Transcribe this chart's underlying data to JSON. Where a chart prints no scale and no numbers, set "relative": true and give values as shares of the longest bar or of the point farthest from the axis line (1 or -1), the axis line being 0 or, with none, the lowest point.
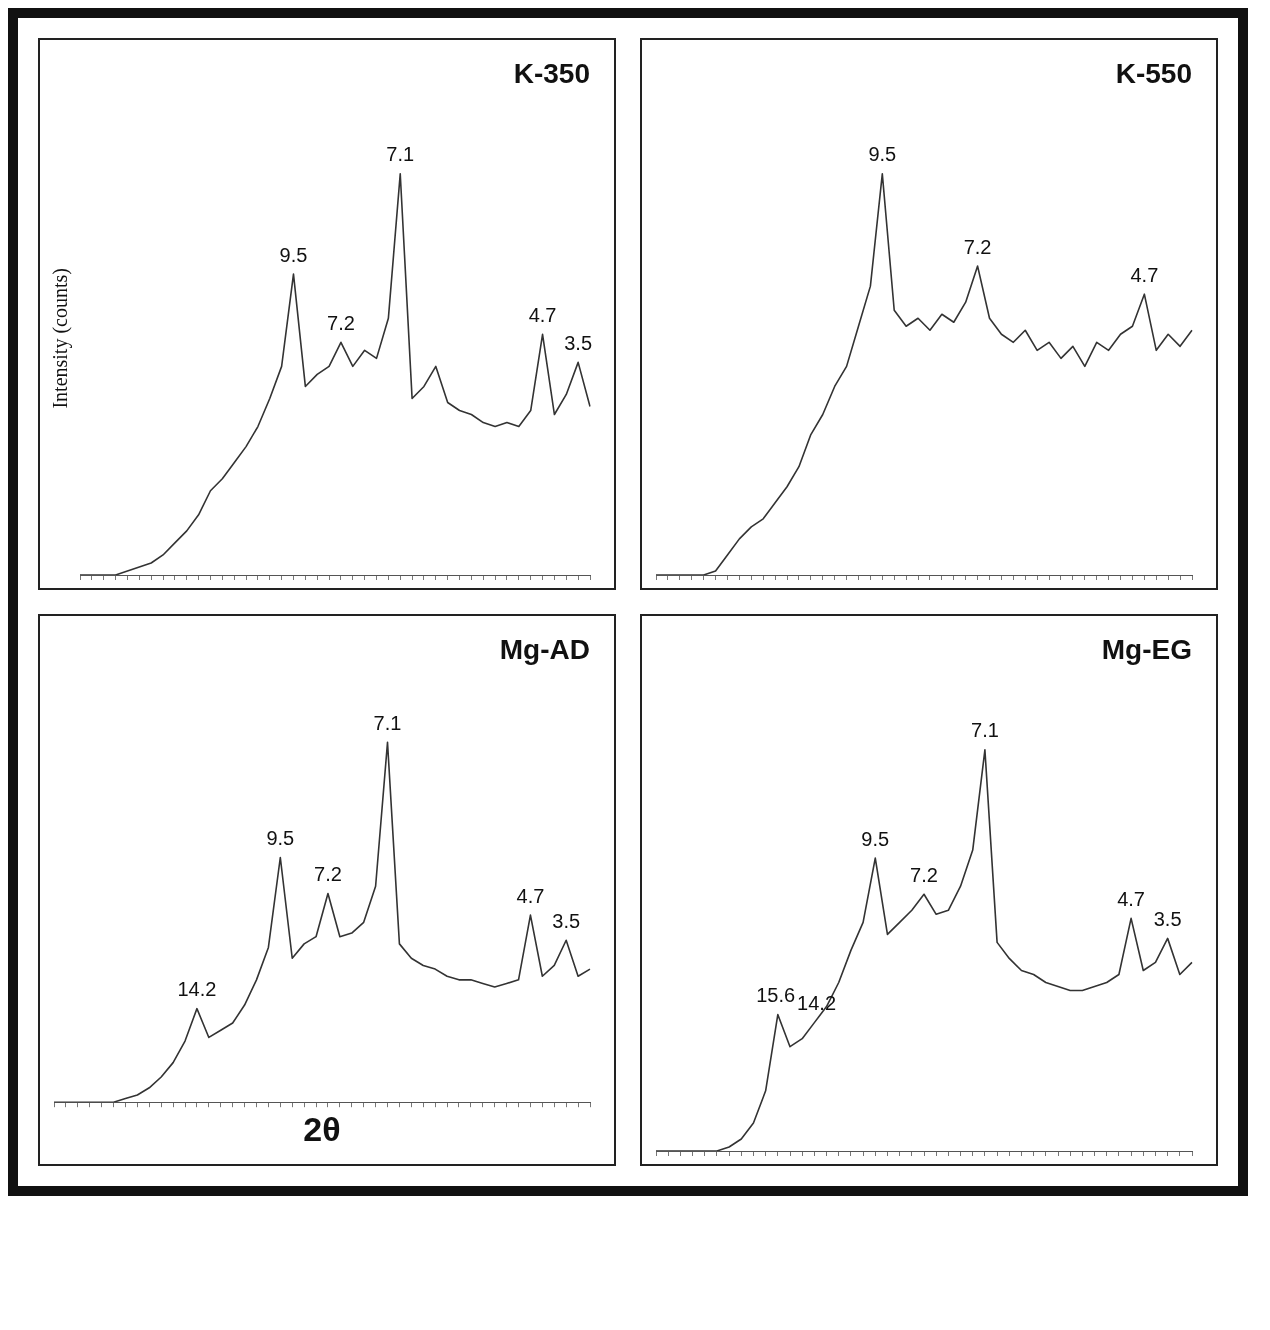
{
  "chart_data": [
    {
      "type": "line",
      "title": "K-350",
      "ylabel": "Intensity (counts)",
      "relative": true,
      "tick_labels": false,
      "grid": false,
      "legend": false,
      "marker": "none",
      "line_style": "solid",
      "categories": [
        null,
        null,
        null,
        null,
        null,
        null,
        null,
        null,
        null,
        null,
        null,
        null,
        null,
        null,
        null,
        null,
        null,
        null,
        null,
        null,
        null,
        null,
        null,
        null,
        null,
        null,
        null,
        null,
        null,
        null,
        null,
        null,
        null,
        null,
        null,
        null,
        null,
        null,
        null,
        null,
        null,
        null,
        null,
        null
      ],
      "series": [
        {
          "color": "#333333",
          "values": [
            0,
            0,
            0,
            0,
            0.01,
            0.02,
            0.03,
            0.05,
            0.08,
            0.11,
            0.15,
            0.21,
            0.24,
            0.28,
            0.32,
            0.37,
            0.44,
            0.52,
            0.75,
            0.47,
            0.5,
            0.52,
            0.58,
            0.52,
            0.56,
            0.54,
            0.64,
            1.0,
            0.44,
            0.47,
            0.52,
            0.43,
            0.41,
            0.4,
            0.38,
            0.37,
            0.38,
            0.37,
            0.41,
            0.6,
            0.4,
            0.45,
            0.53,
            0.42
          ]
        }
      ],
      "annotations": [
        {
          "text": "9.5",
          "y": 0.75
        },
        {
          "text": "7.2",
          "y": 0.58
        },
        {
          "text": "7.1",
          "y": 1.0
        },
        {
          "text": "4.7",
          "y": 0.6
        },
        {
          "text": "3.5",
          "y": 0.53
        }
      ]
    },
    {
      "type": "line",
      "title": "K-550",
      "relative": true,
      "tick_labels": false,
      "grid": false,
      "legend": false,
      "marker": "none",
      "line_style": "solid",
      "categories": [
        null,
        null,
        null,
        null,
        null,
        null,
        null,
        null,
        null,
        null,
        null,
        null,
        null,
        null,
        null,
        null,
        null,
        null,
        null,
        null,
        null,
        null,
        null,
        null,
        null,
        null,
        null,
        null,
        null,
        null,
        null,
        null,
        null,
        null,
        null,
        null,
        null,
        null,
        null,
        null,
        null,
        null,
        null,
        null,
        null,
        null
      ],
      "series": [
        {
          "color": "#333333",
          "values": [
            0,
            0,
            0,
            0,
            0,
            0.01,
            0.05,
            0.09,
            0.12,
            0.14,
            0.18,
            0.22,
            0.27,
            0.35,
            0.4,
            0.47,
            0.52,
            0.62,
            0.72,
            1.0,
            0.66,
            0.62,
            0.64,
            0.61,
            0.65,
            0.63,
            0.68,
            0.77,
            0.64,
            0.6,
            0.58,
            0.61,
            0.56,
            0.58,
            0.54,
            0.57,
            0.52,
            0.58,
            0.56,
            0.6,
            0.62,
            0.7,
            0.56,
            0.6,
            0.57,
            0.61
          ]
        }
      ],
      "annotations": [
        {
          "text": "9.5",
          "y": 1.0
        },
        {
          "text": "7.2",
          "y": 0.77
        },
        {
          "text": "4.7",
          "y": 0.7
        }
      ]
    },
    {
      "type": "line",
      "title": "Mg-AD",
      "xlabel": "2θ",
      "relative": true,
      "tick_labels": false,
      "grid": false,
      "legend": false,
      "marker": "none",
      "line_style": "solid",
      "categories": [
        null,
        null,
        null,
        null,
        null,
        null,
        null,
        null,
        null,
        null,
        null,
        null,
        null,
        null,
        null,
        null,
        null,
        null,
        null,
        null,
        null,
        null,
        null,
        null,
        null,
        null,
        null,
        null,
        null,
        null,
        null,
        null,
        null,
        null,
        null,
        null,
        null,
        null,
        null,
        null,
        null,
        null,
        null,
        null,
        null,
        null
      ],
      "series": [
        {
          "color": "#333333",
          "values": [
            0,
            0,
            0,
            0,
            0,
            0,
            0.01,
            0.02,
            0.04,
            0.07,
            0.11,
            0.17,
            0.26,
            0.18,
            0.2,
            0.22,
            0.27,
            0.34,
            0.43,
            0.68,
            0.4,
            0.44,
            0.46,
            0.58,
            0.46,
            0.47,
            0.5,
            0.6,
            1.0,
            0.44,
            0.4,
            0.38,
            0.37,
            0.35,
            0.34,
            0.34,
            0.33,
            0.32,
            0.33,
            0.34,
            0.52,
            0.35,
            0.38,
            0.45,
            0.35,
            0.37
          ]
        }
      ],
      "annotations": [
        {
          "text": "14.2",
          "y": 0.26
        },
        {
          "text": "9.5",
          "y": 0.68
        },
        {
          "text": "7.2",
          "y": 0.58
        },
        {
          "text": "7.1",
          "y": 1.0
        },
        {
          "text": "4.7",
          "y": 0.52
        },
        {
          "text": "3.5",
          "y": 0.45
        }
      ]
    },
    {
      "type": "line",
      "title": "Mg-EG",
      "relative": true,
      "tick_labels": false,
      "grid": false,
      "legend": false,
      "marker": "none",
      "line_style": "solid",
      "categories": [
        null,
        null,
        null,
        null,
        null,
        null,
        null,
        null,
        null,
        null,
        null,
        null,
        null,
        null,
        null,
        null,
        null,
        null,
        null,
        null,
        null,
        null,
        null,
        null,
        null,
        null,
        null,
        null,
        null,
        null,
        null,
        null,
        null,
        null,
        null,
        null,
        null,
        null,
        null,
        null,
        null,
        null,
        null,
        null,
        null
      ],
      "series": [
        {
          "color": "#333333",
          "values": [
            0,
            0,
            0,
            0,
            0,
            0,
            0.01,
            0.03,
            0.07,
            0.15,
            0.34,
            0.26,
            0.28,
            0.32,
            0.36,
            0.42,
            0.5,
            0.57,
            0.73,
            0.54,
            0.57,
            0.6,
            0.64,
            0.59,
            0.6,
            0.66,
            0.75,
            1.0,
            0.52,
            0.48,
            0.45,
            0.44,
            0.42,
            0.41,
            0.4,
            0.4,
            0.41,
            0.42,
            0.44,
            0.58,
            0.45,
            0.47,
            0.53,
            0.44,
            0.47
          ]
        }
      ],
      "annotations": [
        {
          "text": "15.6",
          "y": 0.34
        },
        {
          "text": "14.2",
          "y": 0.32
        },
        {
          "text": "9.5",
          "y": 0.73
        },
        {
          "text": "7.2",
          "y": 0.64
        },
        {
          "text": "7.1",
          "y": 1.0
        },
        {
          "text": "4.7",
          "y": 0.58
        },
        {
          "text": "3.5",
          "y": 0.53
        }
      ]
    }
  ]
}
